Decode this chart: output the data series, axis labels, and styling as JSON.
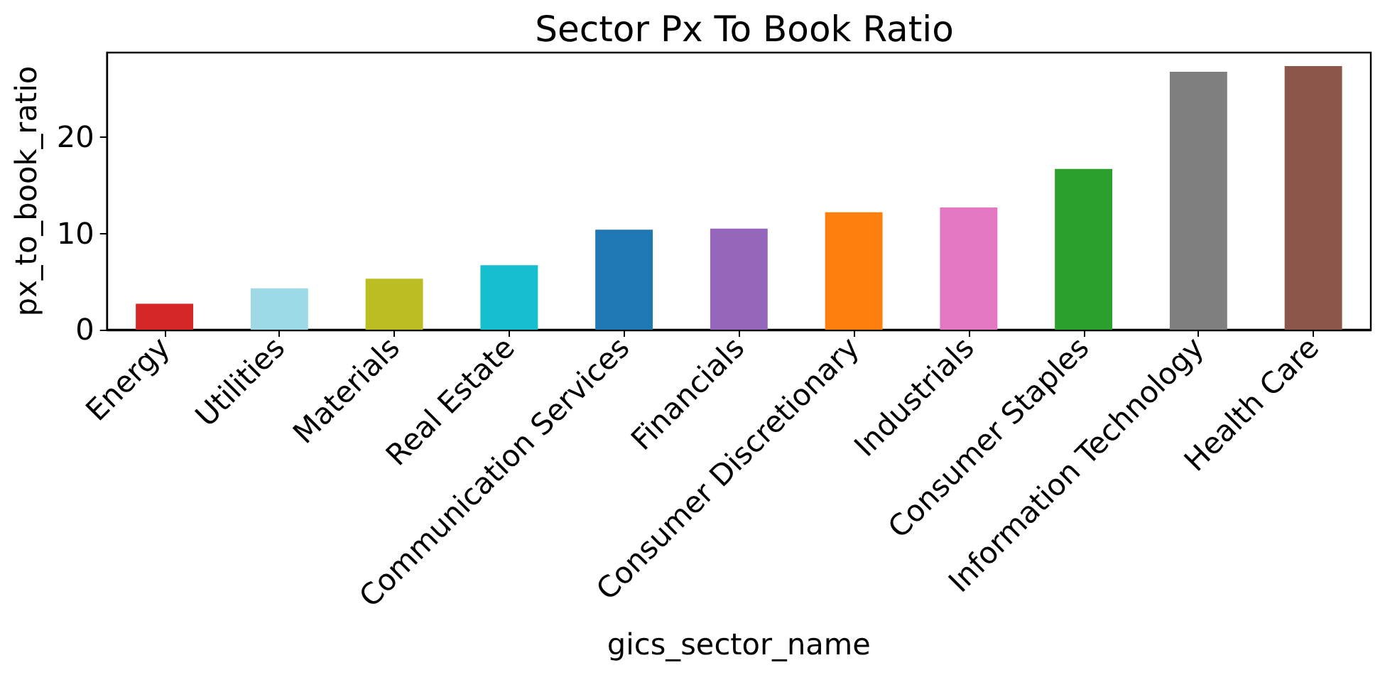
{
  "chart_data": {
    "type": "bar",
    "title": "Sector Px To Book Ratio",
    "xlabel": "gics_sector_name",
    "ylabel": "px_to_book_ratio",
    "categories": [
      "Energy",
      "Utilities",
      "Materials",
      "Real Estate",
      "Communication Services",
      "Financials",
      "Consumer Discretionary",
      "Industrials",
      "Consumer Staples",
      "Information Technology",
      "Health Care"
    ],
    "values": [
      2.7,
      4.3,
      5.3,
      6.7,
      10.4,
      10.5,
      12.2,
      12.7,
      16.7,
      26.8,
      27.4
    ],
    "colors": [
      "#d62728",
      "#9edae5",
      "#bcbd22",
      "#17becf",
      "#1f77b4",
      "#9467bd",
      "#ff7f0e",
      "#e377c2",
      "#2ca02c",
      "#7f7f7f",
      "#8c564b"
    ],
    "ylim": [
      0,
      28.8
    ],
    "yticks": [
      0,
      10,
      20
    ]
  }
}
